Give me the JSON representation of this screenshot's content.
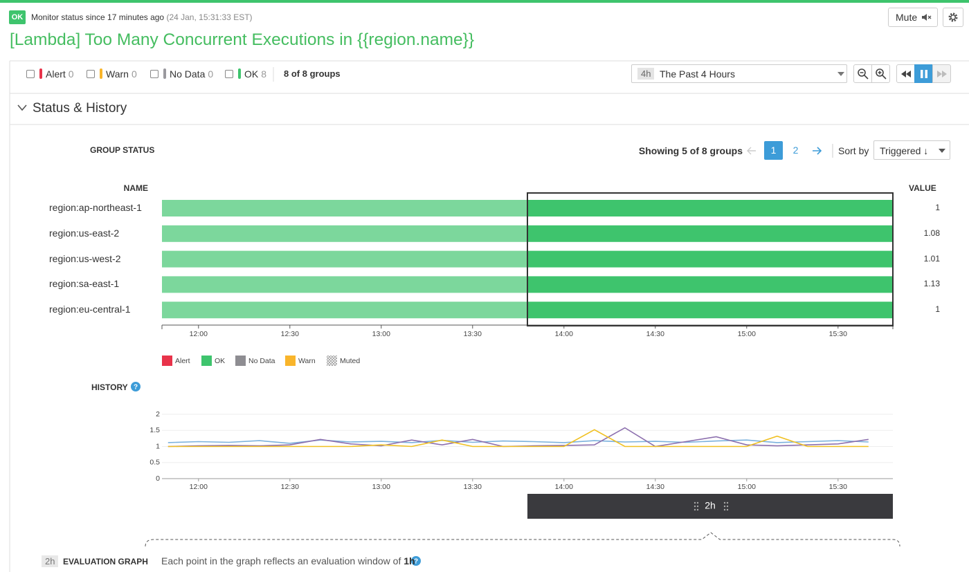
{
  "header": {
    "badge": "OK",
    "status_text": "Monitor status since 17 minutes ago",
    "status_time": "(24 Jan, 15:31:33 EST)",
    "title": "[Lambda] Too Many Concurrent Executions in {{region.name}}",
    "mute": "Mute"
  },
  "filters": {
    "items": [
      {
        "label": "Alert",
        "count": 0,
        "color": "#e8334a"
      },
      {
        "label": "Warn",
        "count": 0,
        "color": "#f9b52b"
      },
      {
        "label": "No Data",
        "count": 0,
        "color": "#9a999e"
      },
      {
        "label": "OK",
        "count": 8,
        "color": "#3ec46d"
      }
    ],
    "groups": "8 of 8 groups",
    "range_badge": "4h",
    "range": "The Past 4 Hours"
  },
  "section": "Status & History",
  "group_status": {
    "heading": "GROUP STATUS",
    "showing": "Showing 5 of 8 groups",
    "pages": [
      1,
      2
    ],
    "current_page": 1,
    "sort_label": "Sort by",
    "sort_value": "Triggered ↓",
    "name_header": "NAME",
    "value_header": "VALUE",
    "rows": [
      {
        "name": "region:ap-northeast-1",
        "value": 1,
        "status": "OK"
      },
      {
        "name": "region:us-east-2",
        "value": 1.08,
        "status": "OK"
      },
      {
        "name": "region:us-west-2",
        "value": 1.01,
        "status": "OK"
      },
      {
        "name": "region:sa-east-1",
        "value": 1.13,
        "status": "OK"
      },
      {
        "name": "region:eu-central-1",
        "value": 1,
        "status": "OK"
      }
    ],
    "legend": [
      {
        "name": "Alert",
        "color": "#e8334a"
      },
      {
        "name": "OK",
        "color": "#3ec46d"
      },
      {
        "name": "No Data",
        "color": "#8e8d92"
      },
      {
        "name": "Warn",
        "color": "#f9b52b"
      },
      {
        "name": "Muted",
        "pattern": "hatch"
      }
    ]
  },
  "timeline": {
    "xlim": [
      "11:48",
      "15:48"
    ],
    "xticks": [
      "12:00",
      "12:30",
      "13:00",
      "13:30",
      "14:00",
      "14:30",
      "15:00",
      "15:30"
    ]
  },
  "history": {
    "heading": "HISTORY",
    "ylim": [
      0,
      2
    ],
    "yticks": [
      0,
      0.5,
      1,
      1.5,
      2
    ],
    "grid": true,
    "x": [
      "11:50",
      "12:00",
      "12:10",
      "12:20",
      "12:30",
      "12:40",
      "12:50",
      "13:00",
      "13:10",
      "13:20",
      "13:30",
      "13:40",
      "13:50",
      "14:00",
      "14:10",
      "14:20",
      "14:30",
      "14:40",
      "14:50",
      "15:00",
      "15:10",
      "15:20",
      "15:30",
      "15:40"
    ],
    "series": [
      {
        "color": "#7bb1dd",
        "values": [
          1.12,
          1.15,
          1.13,
          1.18,
          1.1,
          1.2,
          1.14,
          1.16,
          1.12,
          1.19,
          1.13,
          1.17,
          1.15,
          1.12,
          1.18,
          1.14,
          1.16,
          1.13,
          1.17,
          1.2,
          1.12,
          1.15,
          1.18,
          1.14
        ]
      },
      {
        "color": "#8c6fae",
        "values": [
          1.0,
          1.02,
          1.03,
          1.02,
          1.05,
          1.22,
          1.08,
          1.02,
          1.2,
          1.05,
          1.22,
          1.0,
          1.02,
          1.03,
          1.05,
          1.58,
          1.0,
          1.15,
          1.3,
          1.05,
          1.02,
          1.05,
          1.08,
          1.22
        ]
      },
      {
        "color": "#f0c020",
        "values": [
          1.0,
          1.0,
          1.0,
          1.0,
          1.0,
          1.0,
          1.0,
          1.05,
          1.0,
          1.2,
          1.0,
          1.0,
          1.0,
          1.0,
          1.52,
          1.0,
          1.0,
          1.0,
          1.0,
          1.0,
          1.32,
          1.0,
          1.0,
          1.0
        ]
      }
    ]
  },
  "selection": {
    "label": "2h",
    "start": "13:48",
    "end": "15:48"
  },
  "evaluation": {
    "badge": "2h",
    "heading": "EVALUATION GRAPH",
    "text": "Each point in the graph reflects an evaluation window of",
    "window": "1h"
  }
}
